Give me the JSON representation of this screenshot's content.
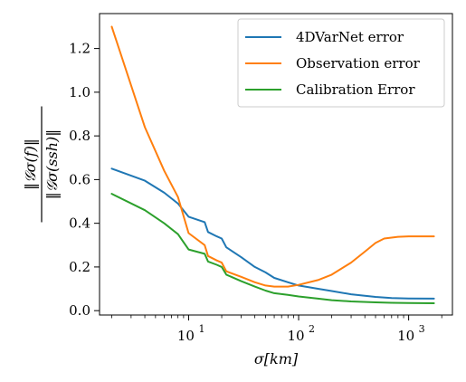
{
  "chart_data": {
    "type": "line",
    "title": "",
    "xlabel": "σ[km]",
    "ylabel": {
      "numerator": "‖𝒢σ(f)‖",
      "denominator": "‖𝒢σ(ssh)‖"
    },
    "x_scale": "log",
    "xlim": [
      1.55,
      2500
    ],
    "ylim": [
      -0.02,
      1.36
    ],
    "x_ticks": [
      {
        "value": 10,
        "label_base": "10",
        "label_exp": "1"
      },
      {
        "value": 100,
        "label_base": "10",
        "label_exp": "2"
      },
      {
        "value": 1000,
        "label_base": "10",
        "label_exp": "3"
      }
    ],
    "y_ticks": [
      {
        "value": 0.0,
        "label": "0.0"
      },
      {
        "value": 0.2,
        "label": "0.2"
      },
      {
        "value": 0.4,
        "label": "0.4"
      },
      {
        "value": 0.6,
        "label": "0.6"
      },
      {
        "value": 0.8,
        "label": "0.8"
      },
      {
        "value": 1.0,
        "label": "1.0"
      },
      {
        "value": 1.2,
        "label": "1.2"
      }
    ],
    "grid": false,
    "legend_position": "top-right",
    "series": [
      {
        "name": "4DVarNet error",
        "color": "#1f77b4",
        "points": [
          [
            2,
            0.65
          ],
          [
            4,
            0.595
          ],
          [
            6,
            0.54
          ],
          [
            8,
            0.49
          ],
          [
            10,
            0.43
          ],
          [
            14,
            0.405
          ],
          [
            15,
            0.36
          ],
          [
            18,
            0.34
          ],
          [
            20,
            0.33
          ],
          [
            22,
            0.29
          ],
          [
            30,
            0.245
          ],
          [
            40,
            0.2
          ],
          [
            50,
            0.175
          ],
          [
            60,
            0.15
          ],
          [
            80,
            0.13
          ],
          [
            100,
            0.115
          ],
          [
            150,
            0.1
          ],
          [
            200,
            0.09
          ],
          [
            300,
            0.075
          ],
          [
            500,
            0.063
          ],
          [
            700,
            0.058
          ],
          [
            1000,
            0.056
          ],
          [
            1700,
            0.055
          ]
        ]
      },
      {
        "name": "Observation error",
        "color": "#ff7f0e",
        "points": [
          [
            2,
            1.3
          ],
          [
            4,
            0.84
          ],
          [
            6,
            0.64
          ],
          [
            8,
            0.52
          ],
          [
            10,
            0.355
          ],
          [
            14,
            0.3
          ],
          [
            15,
            0.25
          ],
          [
            18,
            0.23
          ],
          [
            20,
            0.22
          ],
          [
            22,
            0.18
          ],
          [
            30,
            0.155
          ],
          [
            40,
            0.13
          ],
          [
            50,
            0.115
          ],
          [
            60,
            0.11
          ],
          [
            80,
            0.11
          ],
          [
            100,
            0.118
          ],
          [
            150,
            0.14
          ],
          [
            200,
            0.165
          ],
          [
            300,
            0.22
          ],
          [
            400,
            0.27
          ],
          [
            500,
            0.31
          ],
          [
            600,
            0.33
          ],
          [
            800,
            0.338
          ],
          [
            1000,
            0.34
          ],
          [
            1700,
            0.34
          ]
        ]
      },
      {
        "name": "Calibration Error",
        "color": "#2ca02c",
        "points": [
          [
            2,
            0.535
          ],
          [
            4,
            0.46
          ],
          [
            6,
            0.4
          ],
          [
            8,
            0.35
          ],
          [
            10,
            0.28
          ],
          [
            14,
            0.26
          ],
          [
            15,
            0.225
          ],
          [
            18,
            0.21
          ],
          [
            20,
            0.2
          ],
          [
            22,
            0.165
          ],
          [
            30,
            0.135
          ],
          [
            40,
            0.11
          ],
          [
            50,
            0.092
          ],
          [
            60,
            0.08
          ],
          [
            80,
            0.072
          ],
          [
            100,
            0.065
          ],
          [
            150,
            0.055
          ],
          [
            200,
            0.048
          ],
          [
            300,
            0.042
          ],
          [
            500,
            0.038
          ],
          [
            700,
            0.036
          ],
          [
            1000,
            0.035
          ],
          [
            1700,
            0.034
          ]
        ]
      }
    ]
  }
}
